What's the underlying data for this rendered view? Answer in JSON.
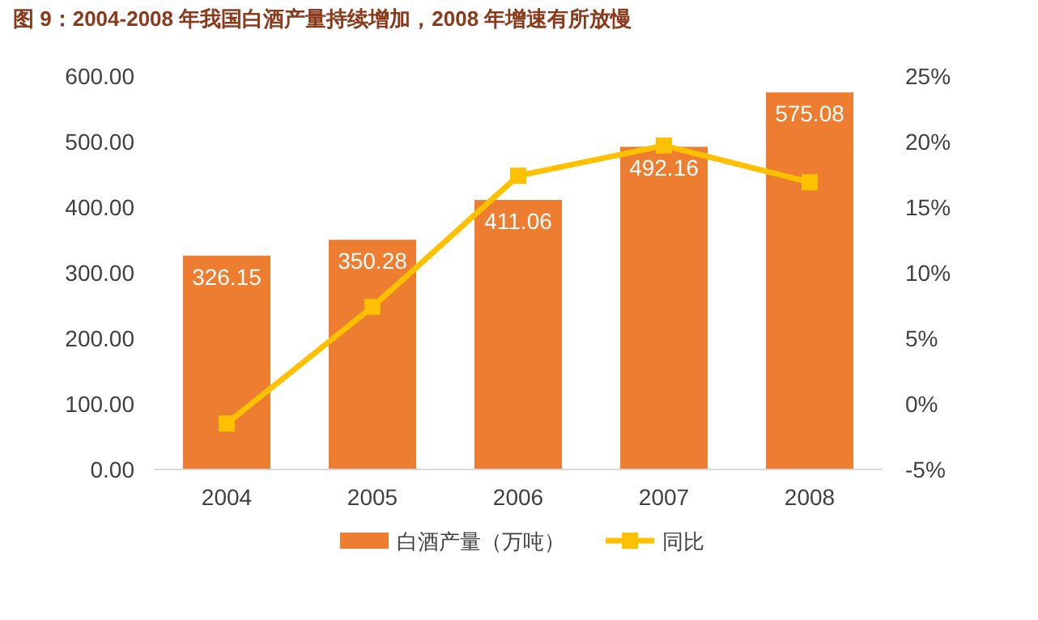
{
  "chart_data": {
    "type": "bar",
    "title": "图 9：2004-2008 年我国白酒产量持续增加，2008 年增速有所放慢",
    "categories": [
      "2004",
      "2005",
      "2006",
      "2007",
      "2008"
    ],
    "series": [
      {
        "name": "白酒产量（万吨）",
        "color": "#ed7d31",
        "values": [
          326.15,
          350.28,
          411.06,
          492.16,
          575.08
        ],
        "value_labels": [
          "326.15",
          "350.28",
          "411.06",
          "492.16",
          "575.08"
        ]
      },
      {
        "name": "同比",
        "type": "line",
        "axis": "y2",
        "color": "#ffc000",
        "values": [
          -1.5,
          7.4,
          17.4,
          19.7,
          16.9
        ]
      }
    ],
    "ylim": [
      0,
      600
    ],
    "yticks": [
      {
        "value": 0,
        "label": "0.00"
      },
      {
        "value": 100,
        "label": "100.00"
      },
      {
        "value": 200,
        "label": "200.00"
      },
      {
        "value": 300,
        "label": "300.00"
      },
      {
        "value": 400,
        "label": "400.00"
      },
      {
        "value": 500,
        "label": "500.00"
      },
      {
        "value": 600,
        "label": "600.00"
      }
    ],
    "y2lim": [
      -5,
      25
    ],
    "y2ticks": [
      {
        "value": -5,
        "label": "-5%"
      },
      {
        "value": 0,
        "label": "0%"
      },
      {
        "value": 5,
        "label": "5%"
      },
      {
        "value": 10,
        "label": "10%"
      },
      {
        "value": 15,
        "label": "15%"
      },
      {
        "value": 20,
        "label": "20%"
      },
      {
        "value": 25,
        "label": "25%"
      }
    ],
    "legend": "bottom",
    "marker": "square",
    "grid": false
  }
}
